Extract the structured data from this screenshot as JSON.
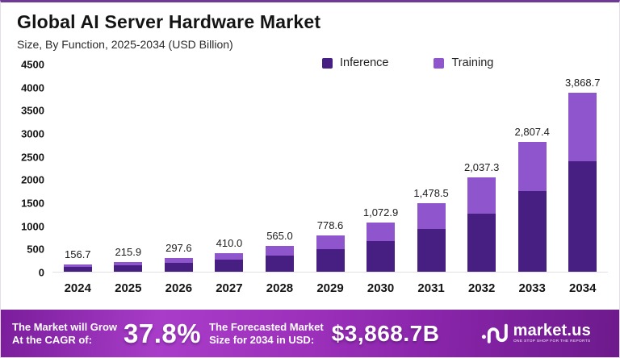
{
  "page": {
    "title": "Global AI Server Hardware Market",
    "subtitle": "Size, By Function, 2025-2034 (USD Billion)"
  },
  "colors": {
    "accent_top_border": "#6e3a96",
    "inference": "#471f82",
    "training": "#8f55cc",
    "banner_gradient": [
      "#7a1d9b",
      "#a93dc9",
      "#6d1a8c"
    ]
  },
  "chart_data": {
    "type": "bar",
    "stacked": true,
    "title": "Global AI Server Hardware Market",
    "subtitle": "Size, By Function, 2025-2034 (USD Billion)",
    "xlabel": "",
    "ylabel": "",
    "grid": false,
    "legend_position": "top",
    "ylim": [
      0,
      4500
    ],
    "yticks": [
      0,
      500,
      1000,
      1500,
      2000,
      2500,
      3000,
      3500,
      4000,
      4500
    ],
    "categories": [
      "2024",
      "2025",
      "2026",
      "2027",
      "2028",
      "2029",
      "2030",
      "2031",
      "2032",
      "2033",
      "2034"
    ],
    "totals": [
      156.7,
      215.9,
      297.6,
      410.0,
      565.0,
      778.6,
      1072.9,
      1478.5,
      2037.3,
      2807.4,
      3868.7
    ],
    "total_labels": [
      "156.7",
      "215.9",
      "297.6",
      "410.0",
      "565.0",
      "778.6",
      "1,072.9",
      "1,478.5",
      "2,037.3",
      "2,807.4",
      "3,868.7"
    ],
    "series": [
      {
        "name": "Inference",
        "color": "#471f82",
        "values_estimated_from_pixels": true,
        "values": [
          97.2,
          133.9,
          184.5,
          254.2,
          350.3,
          482.7,
          665.2,
          916.7,
          1263.1,
          1740.6,
          2398.6
        ]
      },
      {
        "name": "Training",
        "color": "#8f55cc",
        "values_estimated_from_pixels": true,
        "values": [
          59.5,
          82.0,
          113.1,
          155.8,
          214.7,
          295.9,
          407.7,
          561.8,
          774.2,
          1066.8,
          1470.1
        ]
      }
    ]
  },
  "banner": {
    "cagr_label_line1": "The Market will Grow",
    "cagr_label_line2": "At the CAGR of:",
    "cagr_value": "37.8%",
    "forecast_label_line1": "The Forecasted Market",
    "forecast_label_line2": "Size for 2034 in USD:",
    "forecast_value": "$3,868.7B",
    "logo_text": "market.us",
    "logo_tagline": "ONE STOP SHOP FOR THE REPORTS"
  }
}
